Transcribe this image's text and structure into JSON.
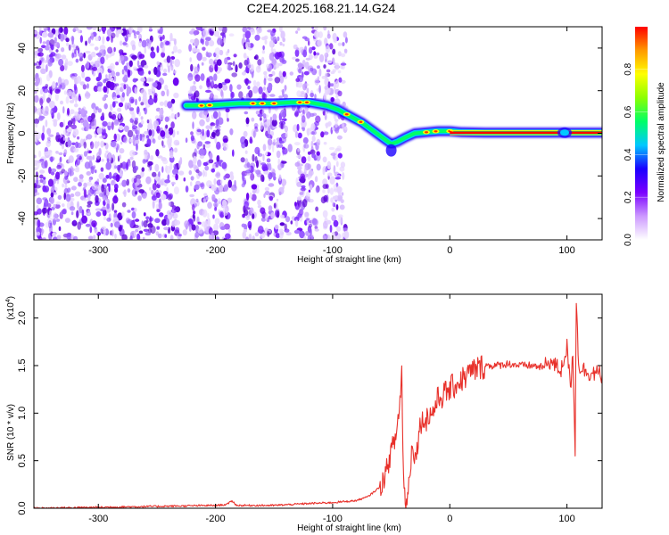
{
  "title": "C2E4.2025.168.21.14.G24",
  "chart_data": [
    {
      "type": "heatmap",
      "xlabel": "Height of straight line (km)",
      "ylabel": "Frequency (Hz)",
      "xlim": [
        -355,
        130
      ],
      "ylim": [
        -50,
        50
      ],
      "x_ticks": [
        -300,
        -200,
        -100,
        0,
        100
      ],
      "x_tick_labels": [
        "-300",
        "-200",
        "-100",
        "0",
        "100"
      ],
      "y_ticks": [
        -40,
        -20,
        0,
        20,
        40
      ],
      "y_tick_labels": [
        "-40",
        "-20",
        "0",
        "20",
        "40"
      ],
      "noise_region_x": [
        -355,
        -88
      ],
      "noise_gaps_x": [
        [
          -232,
          -222
        ],
        [
          -188,
          -177
        ],
        [
          -140,
          -131
        ],
        [
          -112,
          -108
        ]
      ],
      "ridge": [
        [
          -225,
          13
        ],
        [
          -210,
          13
        ],
        [
          -195,
          13.5
        ],
        [
          -180,
          14
        ],
        [
          -165,
          14
        ],
        [
          -150,
          14
        ],
        [
          -135,
          14.5
        ],
        [
          -120,
          14.5
        ],
        [
          -105,
          13
        ],
        [
          -95,
          11
        ],
        [
          -85,
          8
        ],
        [
          -75,
          5
        ],
        [
          -65,
          1
        ],
        [
          -55,
          -3
        ],
        [
          -50,
          -5
        ],
        [
          -45,
          -4
        ],
        [
          -38,
          -2
        ],
        [
          -30,
          0
        ],
        [
          -20,
          0.5
        ],
        [
          -10,
          1
        ],
        [
          0,
          1
        ],
        [
          10,
          0.5
        ],
        [
          30,
          0.3
        ],
        [
          60,
          0.3
        ],
        [
          90,
          0.3
        ],
        [
          110,
          0.3
        ],
        [
          130,
          0.3
        ]
      ],
      "colorbar": {
        "label": "Normalized spectral amplitude",
        "range": [
          0.0,
          1.0
        ],
        "ticks": [
          0.0,
          0.2,
          0.4,
          0.6,
          0.8
        ],
        "tick_labels": [
          "0.0",
          "0.2",
          "0.4",
          "0.6",
          "0.8"
        ],
        "colors": [
          "#ffffff",
          "#cc99ff",
          "#7a00ff",
          "#1a00ff",
          "#00c8ff",
          "#00ff66",
          "#8cff00",
          "#ffff00",
          "#ff9900",
          "#ff0000"
        ]
      }
    },
    {
      "type": "line",
      "xlabel": "Height of straight line (km)",
      "ylabel": "SNR (10 * v/v)",
      "y_multiplier": "(x10",
      "y_multiplier_exp": "4",
      "y_multiplier_close": ")",
      "xlim": [
        -355,
        130
      ],
      "ylim": [
        0,
        2.25
      ],
      "x_ticks": [
        -300,
        -200,
        -100,
        0,
        100
      ],
      "x_tick_labels": [
        "-300",
        "-200",
        "-100",
        "0",
        "100"
      ],
      "y_ticks": [
        0,
        0.5,
        1.0,
        1.5,
        2.0
      ],
      "y_tick_labels": [
        "0.0",
        "0.5",
        "1.0",
        "1.5",
        "2.0"
      ],
      "line_color": "#e8302a",
      "series": [
        {
          "x": [
            -355,
            -300,
            -250,
            -200,
            -190,
            -186,
            -182,
            -170,
            -150,
            -120,
            -100,
            -80,
            -70,
            -60,
            -55,
            -50,
            -46,
            -43,
            -41,
            -40,
            -39,
            -37,
            -35,
            -32,
            -29,
            -27,
            -25,
            -20,
            -15,
            -10,
            -5,
            0,
            5,
            10,
            15,
            20,
            30,
            40,
            50,
            60,
            70,
            80,
            85,
            90,
            95,
            100,
            103,
            105,
            107,
            108,
            110,
            115,
            120,
            125,
            130
          ],
          "y": [
            0.0,
            0.01,
            0.02,
            0.03,
            0.04,
            0.08,
            0.03,
            0.03,
            0.03,
            0.05,
            0.06,
            0.08,
            0.12,
            0.22,
            0.35,
            0.6,
            0.75,
            1.05,
            1.45,
            0.55,
            0.2,
            0.05,
            0.25,
            0.7,
            0.5,
            0.75,
            0.9,
            0.95,
            1.0,
            1.15,
            1.2,
            1.25,
            1.3,
            1.35,
            1.4,
            1.45,
            1.5,
            1.5,
            1.52,
            1.5,
            1.5,
            1.48,
            1.55,
            1.5,
            1.45,
            1.7,
            1.25,
            1.65,
            0.62,
            2.2,
            1.5,
            1.45,
            1.42,
            1.42,
            1.4
          ]
        }
      ]
    }
  ]
}
